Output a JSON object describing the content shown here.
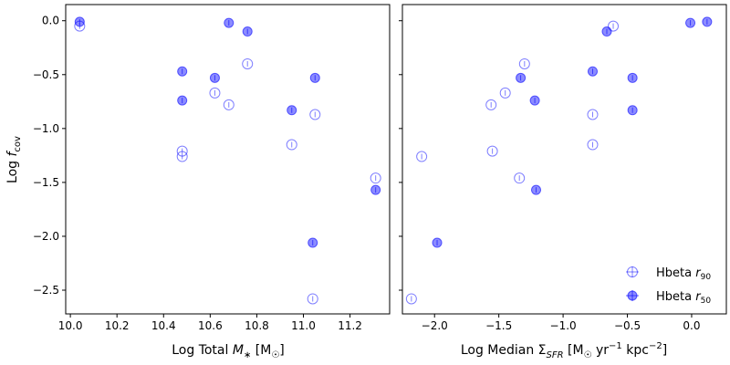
{
  "chart_data": [
    {
      "type": "scatter",
      "panel": "left",
      "xlabel": "Log Total M* [M☉]",
      "ylabel": "Log f_cov",
      "xlim": [
        9.98,
        11.37
      ],
      "ylim": [
        -2.72,
        0.15
      ],
      "xticks": [
        10.0,
        10.2,
        10.4,
        10.6,
        10.8,
        11.0,
        11.2
      ],
      "xtick_labels": [
        "10.0",
        "10.2",
        "10.4",
        "10.6",
        "10.8",
        "11.0",
        "11.2"
      ],
      "yticks": [
        0.0,
        -0.5,
        -1.0,
        -1.5,
        -2.0,
        -2.5
      ],
      "ytick_labels": [
        "0.0",
        "−0.5",
        "−1.0",
        "−1.5",
        "−2.0",
        "−2.5"
      ],
      "series": [
        {
          "name": "Hbeta r90",
          "marker": "open",
          "points": [
            {
              "x": 10.04,
              "y": -0.05
            },
            {
              "x": 10.48,
              "y": -1.21
            },
            {
              "x": 10.48,
              "y": -1.26
            },
            {
              "x": 10.62,
              "y": -0.67
            },
            {
              "x": 10.68,
              "y": -0.78
            },
            {
              "x": 10.76,
              "y": -0.4
            },
            {
              "x": 10.95,
              "y": -1.15
            },
            {
              "x": 11.05,
              "y": -0.87
            },
            {
              "x": 11.04,
              "y": -2.58
            },
            {
              "x": 11.31,
              "y": -1.46
            }
          ]
        },
        {
          "name": "Hbeta r50",
          "marker": "filled",
          "points": [
            {
              "x": 10.04,
              "y": -0.01
            },
            {
              "x": 10.48,
              "y": -0.47
            },
            {
              "x": 10.48,
              "y": -0.74
            },
            {
              "x": 10.62,
              "y": -0.53
            },
            {
              "x": 10.68,
              "y": -0.02
            },
            {
              "x": 10.76,
              "y": -0.1
            },
            {
              "x": 10.95,
              "y": -0.83
            },
            {
              "x": 11.05,
              "y": -0.53
            },
            {
              "x": 11.04,
              "y": -2.06
            },
            {
              "x": 11.31,
              "y": -1.57
            }
          ]
        }
      ]
    },
    {
      "type": "scatter",
      "panel": "right",
      "xlabel": "Log Median Σ_SFR [M☉ yr⁻¹ kpc⁻²]",
      "xlim": [
        -2.25,
        0.27
      ],
      "ylim": [
        -2.72,
        0.15
      ],
      "xticks": [
        -2.0,
        -1.5,
        -1.0,
        -0.5,
        0.0
      ],
      "xtick_labels": [
        "−2.0",
        "−1.5",
        "−1.0",
        "−0.5",
        "0.0"
      ],
      "legend": {
        "position": "lower-right",
        "entries": [
          {
            "label": "Hbeta r90",
            "marker": "open"
          },
          {
            "label": "Hbeta r50",
            "marker": "filled"
          }
        ]
      },
      "series": [
        {
          "name": "Hbeta r90",
          "marker": "open",
          "points": [
            {
              "x": -2.18,
              "y": -2.58
            },
            {
              "x": -2.1,
              "y": -1.26
            },
            {
              "x": -1.56,
              "y": -0.78
            },
            {
              "x": -1.55,
              "y": -1.21
            },
            {
              "x": -1.45,
              "y": -0.67
            },
            {
              "x": -1.34,
              "y": -1.46
            },
            {
              "x": -1.3,
              "y": -0.4
            },
            {
              "x": -0.77,
              "y": -0.87
            },
            {
              "x": -0.77,
              "y": -1.15
            },
            {
              "x": -0.61,
              "y": -0.05
            }
          ]
        },
        {
          "name": "Hbeta r50",
          "marker": "filled",
          "points": [
            {
              "x": -1.98,
              "y": -2.06
            },
            {
              "x": -1.33,
              "y": -0.53
            },
            {
              "x": -1.22,
              "y": -0.74
            },
            {
              "x": -1.21,
              "y": -1.57
            },
            {
              "x": -0.77,
              "y": -0.47
            },
            {
              "x": -0.66,
              "y": -0.1
            },
            {
              "x": -0.46,
              "y": -0.53
            },
            {
              "x": -0.46,
              "y": -0.83
            },
            {
              "x": -0.01,
              "y": -0.02
            },
            {
              "x": 0.12,
              "y": -0.01
            }
          ]
        }
      ]
    }
  ],
  "colors": {
    "marker": "#0000ff",
    "open_marker_alpha": 0.5,
    "filled_marker_alpha": 0.45,
    "axis": "#000000"
  }
}
